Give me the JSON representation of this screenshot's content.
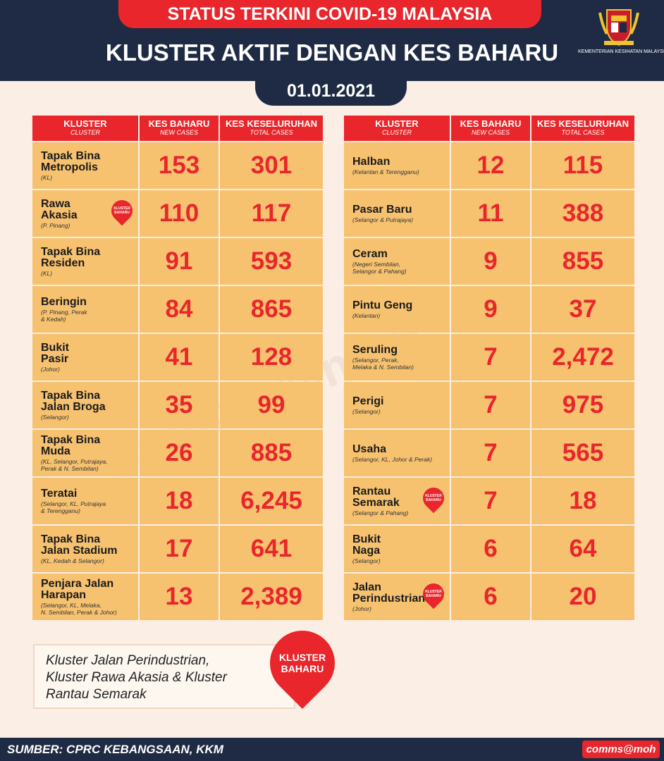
{
  "header": {
    "status_title": "STATUS TERKINI COVID-19 MALAYSIA",
    "main_title": "KLUSTER AKTIF DENGAN KES BAHARU",
    "date": "01.01.2021",
    "ministry": "KEMENTERIAN KESIHATAN MALAYSIA"
  },
  "watermark": "comms@moh",
  "columns": {
    "cluster": "KLUSTER",
    "cluster_en": "CLUSTER",
    "new": "KES BAHARU",
    "new_en": "NEW CASES",
    "total": "KES KESELURUHAN",
    "total_en": "TOTAL CASES"
  },
  "new_badge": "KLUSTER BAHARU",
  "left_table": [
    {
      "name": "Tapak Bina\nMetropolis",
      "location": "(KL)",
      "new_cases": "153",
      "total_cases": "301",
      "is_new": false
    },
    {
      "name": "Rawa\nAkasia",
      "location": "(P. Pinang)",
      "new_cases": "110",
      "total_cases": "117",
      "is_new": true
    },
    {
      "name": "Tapak Bina\nResiden",
      "location": "(KL)",
      "new_cases": "91",
      "total_cases": "593",
      "is_new": false
    },
    {
      "name": "Beringin",
      "location": "(P. Pinang, Perak\n& Kedah)",
      "new_cases": "84",
      "total_cases": "865",
      "is_new": false
    },
    {
      "name": "Bukit\nPasir",
      "location": "(Johor)",
      "new_cases": "41",
      "total_cases": "128",
      "is_new": false
    },
    {
      "name": "Tapak Bina\nJalan Broga",
      "location": "(Selangor)",
      "new_cases": "35",
      "total_cases": "99",
      "is_new": false
    },
    {
      "name": "Tapak Bina\nMuda",
      "location": "(KL, Selangor, Putrajaya,\nPerak & N. Sembilan)",
      "new_cases": "26",
      "total_cases": "885",
      "is_new": false
    },
    {
      "name": "Teratai",
      "location": "(Selangor, KL, Putrajaya\n& Terengganu)",
      "new_cases": "18",
      "total_cases": "6,245",
      "is_new": false
    },
    {
      "name": "Tapak Bina\nJalan Stadium",
      "location": "(KL, Kedah & Selangor)",
      "new_cases": "17",
      "total_cases": "641",
      "is_new": false
    },
    {
      "name": "Penjara Jalan\nHarapan",
      "location": "(Selangor, KL, Melaka,\nN. Sembilan, Perak & Johor)",
      "new_cases": "13",
      "total_cases": "2,389",
      "is_new": false
    }
  ],
  "right_table": [
    {
      "name": "Halban",
      "location": "(Kelantan & Terengganu)",
      "new_cases": "12",
      "total_cases": "115",
      "is_new": false
    },
    {
      "name": "Pasar Baru",
      "location": "(Selangor & Putrajaya)",
      "new_cases": "11",
      "total_cases": "388",
      "is_new": false
    },
    {
      "name": "Ceram",
      "location": "(Negeri Sembilan,\nSelangor & Pahang)",
      "new_cases": "9",
      "total_cases": "855",
      "is_new": false
    },
    {
      "name": "Pintu Geng",
      "location": "(Kelantan)",
      "new_cases": "9",
      "total_cases": "37",
      "is_new": false
    },
    {
      "name": "Seruling",
      "location": "(Selangor, Perak,\nMelaka & N. Sembilan)",
      "new_cases": "7",
      "total_cases": "2,472",
      "is_new": false
    },
    {
      "name": "Perigi",
      "location": "(Selangor)",
      "new_cases": "7",
      "total_cases": "975",
      "is_new": false
    },
    {
      "name": "Usaha",
      "location": "(Selangor, KL, Johor & Perak)",
      "new_cases": "7",
      "total_cases": "565",
      "is_new": false
    },
    {
      "name": "Rantau\nSemarak",
      "location": "(Selangor & Pahang)",
      "new_cases": "7",
      "total_cases": "18",
      "is_new": true
    },
    {
      "name": "Bukit\nNaga",
      "location": "(Selangor)",
      "new_cases": "6",
      "total_cases": "64",
      "is_new": false
    },
    {
      "name": "Jalan\nPerindustrian",
      "location": "(Johor)",
      "new_cases": "6",
      "total_cases": "20",
      "is_new": true
    }
  ],
  "note": {
    "text": "Kluster Jalan Perindustrian,\nKluster Rawa Akasia & Kluster\nRantau Semarak",
    "badge": "KLUSTER\nBAHARU"
  },
  "footer": {
    "source": "SUMBER: CPRC KEBANGSAAN, KKM",
    "brand": "comms@moh"
  },
  "colors": {
    "navy": "#1f2b45",
    "red": "#e8262b",
    "cell": "#f7c270",
    "background": "#fbeee4"
  }
}
